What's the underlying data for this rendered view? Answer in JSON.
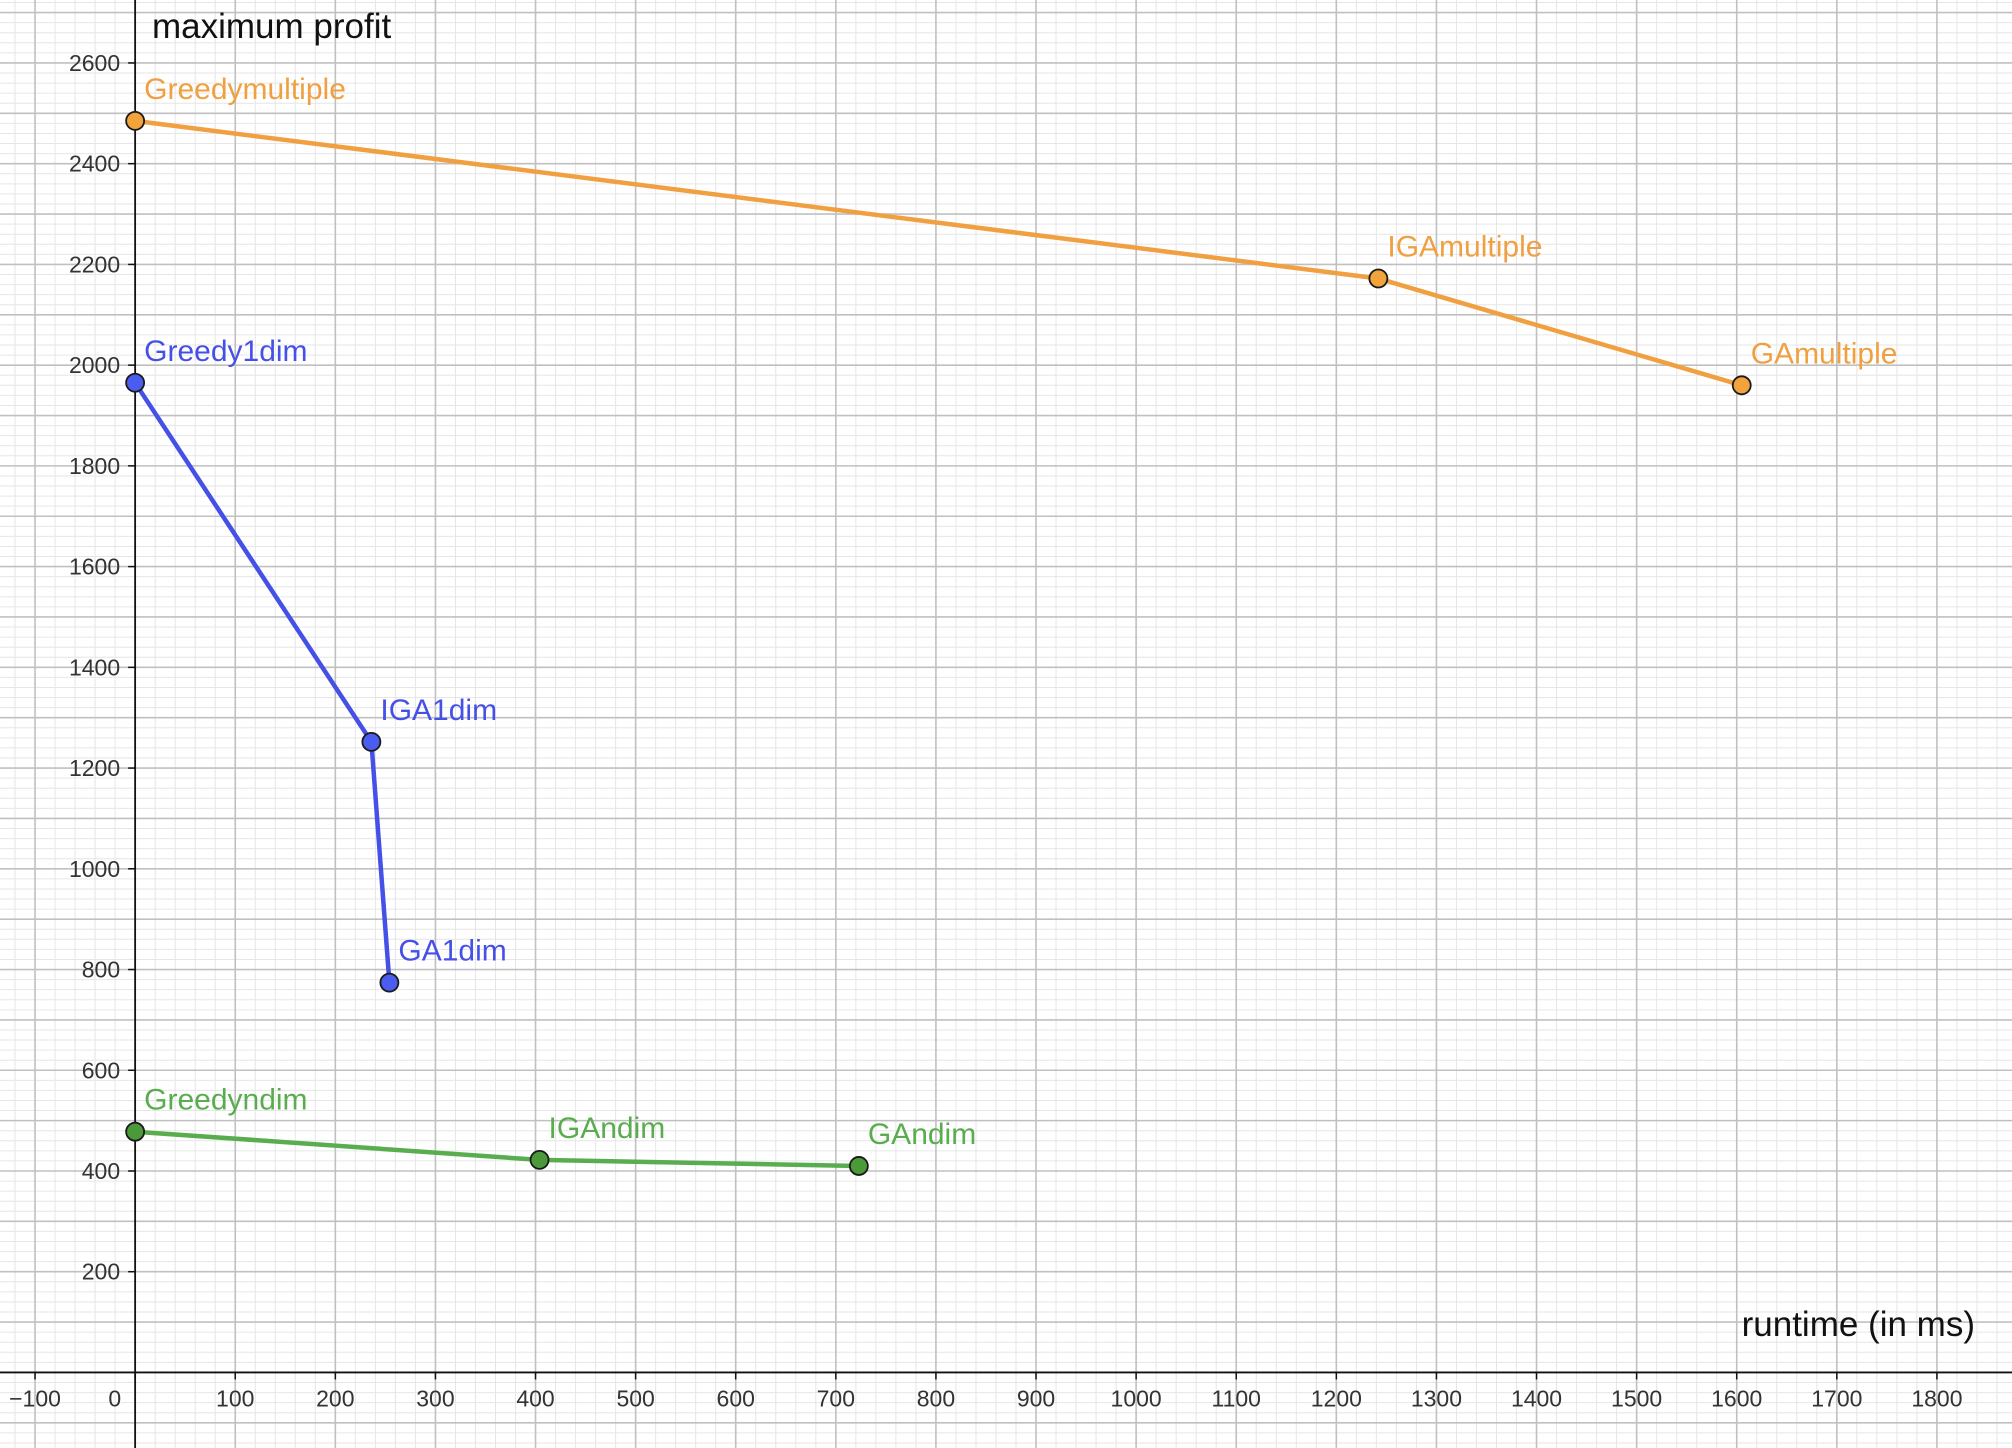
{
  "chart_data": {
    "type": "line",
    "xlabel": "runtime (in ms)",
    "ylabel": "maximum profit",
    "xlim": [
      -135,
      1875
    ],
    "ylim": [
      -150,
      2725
    ],
    "x_ticks": [
      -100,
      0,
      100,
      200,
      300,
      400,
      500,
      600,
      700,
      800,
      900,
      1000,
      1100,
      1200,
      1300,
      1400,
      1500,
      1600,
      1700,
      1800
    ],
    "x_tick_labels": [
      "−100",
      "0",
      "100",
      "200",
      "300",
      "400",
      "500",
      "600",
      "700",
      "800",
      "900",
      "1000",
      "1100",
      "1200",
      "1300",
      "1400",
      "1500",
      "1600",
      "1700",
      "1800"
    ],
    "y_ticks": [
      200,
      400,
      600,
      800,
      1000,
      1200,
      1400,
      1600,
      1800,
      2000,
      2200,
      2400,
      2600
    ],
    "y_tick_labels": [
      "200",
      "400",
      "600",
      "800",
      "1000",
      "1200",
      "1400",
      "1600",
      "1800",
      "2000",
      "2200",
      "2400",
      "2600"
    ],
    "major_grid": 100,
    "minor_grid": 20,
    "grid": true,
    "series": [
      {
        "color": "#f0a040",
        "marker_color": "#f2a33c",
        "points": [
          {
            "label": "Greedymultiple",
            "x": 0,
            "y": 2485
          },
          {
            "label": "IGAmultiple",
            "x": 1242,
            "y": 2172
          },
          {
            "label": "GAmultiple",
            "x": 1605,
            "y": 1960
          }
        ]
      },
      {
        "color": "#4550e6",
        "marker_color": "#4a5df0",
        "points": [
          {
            "label": "Greedy1dim",
            "x": 0,
            "y": 1965
          },
          {
            "label": "IGA1dim",
            "x": 236,
            "y": 1252
          },
          {
            "label": "GA1dim",
            "x": 254,
            "y": 774
          }
        ]
      },
      {
        "color": "#5aad4e",
        "marker_color": "#4a9a3a",
        "points": [
          {
            "label": "Greedyndim",
            "x": 0,
            "y": 478
          },
          {
            "label": "IGAndim",
            "x": 404,
            "y": 422
          },
          {
            "label": "GAndim",
            "x": 723,
            "y": 410
          }
        ]
      }
    ]
  }
}
